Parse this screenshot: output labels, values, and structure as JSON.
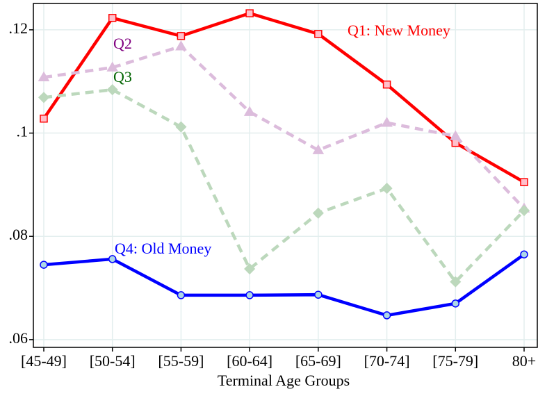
{
  "chart_data": {
    "type": "line",
    "x_label": "Terminal Age Groups",
    "categories": [
      "[45-49]",
      "[50-54]",
      "[55-59]",
      "[60-64]",
      "[65-69]",
      "[70-74]",
      "[75-79]",
      "80+"
    ],
    "series": [
      {
        "name": "Q1: New Money",
        "color": "#ff0000",
        "label_color": "#ff0000",
        "marker": "square",
        "marker_fill": "#ffc0cb",
        "dashed": false,
        "values": [
          0.1028,
          0.1223,
          0.1188,
          0.1232,
          0.1192,
          0.1094,
          0.0981,
          0.0905
        ]
      },
      {
        "name": "Q2",
        "color": "#dcbcdc",
        "label_color": "#800080",
        "marker": "triangle",
        "marker_fill": "#dcbcdc",
        "dashed": true,
        "values": [
          0.1108,
          0.1127,
          0.1168,
          0.1041,
          0.0967,
          0.102,
          0.0994,
          0.0854
        ]
      },
      {
        "name": "Q3",
        "color": "#bcd8bc",
        "label_color": "#006400",
        "marker": "diamond",
        "marker_fill": "#bcd8bc",
        "dashed": true,
        "values": [
          0.1069,
          0.1084,
          0.1012,
          0.0737,
          0.0845,
          0.0893,
          0.0712,
          0.085
        ]
      },
      {
        "name": "Q4: Old Money",
        "color": "#0000ff",
        "label_color": "#0000ff",
        "marker": "circle",
        "marker_fill": "#add8e6",
        "dashed": false,
        "values": [
          0.0745,
          0.0756,
          0.0686,
          0.0686,
          0.0687,
          0.0647,
          0.067,
          0.0765
        ]
      }
    ],
    "ylim": [
      0.0585,
      0.1251
    ],
    "yticks": [
      {
        "value": 0.06,
        "label": ".06"
      },
      {
        "value": 0.08,
        "label": ".08"
      },
      {
        "value": 0.1,
        "label": ".1"
      },
      {
        "value": 0.12,
        "label": ".12"
      }
    ],
    "grid": true
  }
}
